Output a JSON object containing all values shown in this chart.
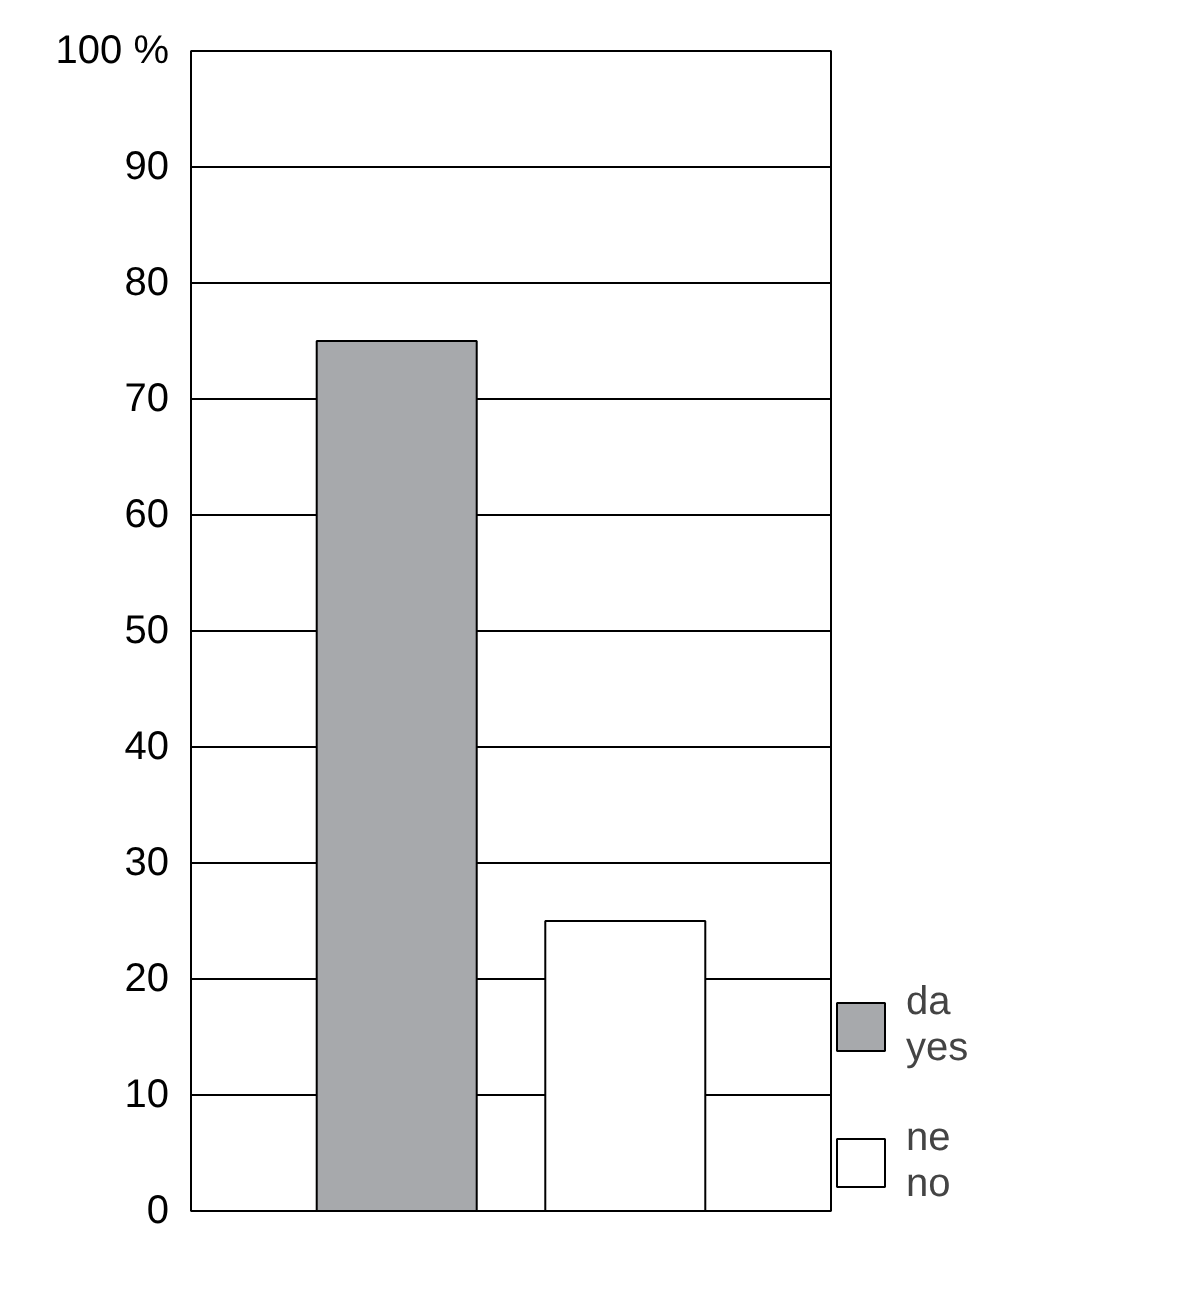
{
  "chart_data": {
    "type": "bar",
    "categories": [
      null,
      null
    ],
    "series": [
      {
        "name": "da\nyes",
        "color": "#a7a9ac",
        "values": [
          75,
          null
        ]
      },
      {
        "name": "ne\nno",
        "color": "#ffffff",
        "values": [
          null,
          25
        ]
      }
    ],
    "ylim": [
      0,
      100
    ],
    "yticks": [
      0,
      10,
      20,
      30,
      40,
      50,
      60,
      70,
      80,
      90,
      {
        "value": 100,
        "label": "100 %"
      }
    ],
    "grid": "y",
    "legend": "bottom right"
  }
}
